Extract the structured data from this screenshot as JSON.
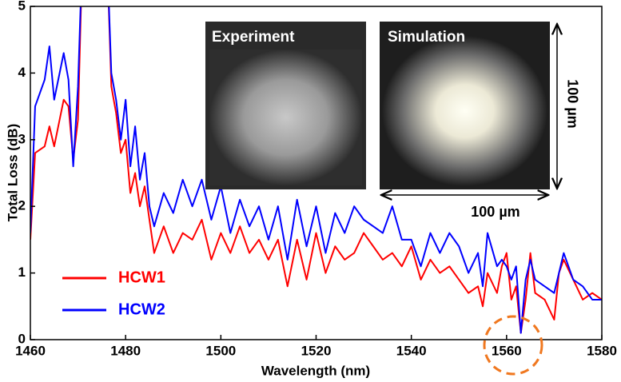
{
  "chart_data": {
    "type": "line",
    "xlabel": "Wavelength (nm)",
    "ylabel": "Total Loss (dB)",
    "x": [
      1460,
      1461,
      1463,
      1464,
      1465,
      1467,
      1468,
      1469,
      1470,
      1471,
      1476,
      1477,
      1478,
      1479,
      1480,
      1481,
      1482,
      1483,
      1484,
      1485,
      1486,
      1488,
      1490,
      1492,
      1494,
      1496,
      1498,
      1500,
      1502,
      1504,
      1506,
      1508,
      1510,
      1512,
      1514,
      1516,
      1518,
      1520,
      1522,
      1524,
      1526,
      1528,
      1530,
      1532,
      1534,
      1536,
      1538,
      1540,
      1542,
      1544,
      1546,
      1548,
      1550,
      1552,
      1554,
      1555,
      1556,
      1558,
      1559,
      1560,
      1561,
      1562,
      1563,
      1564,
      1565,
      1566,
      1568,
      1570,
      1571,
      1572,
      1574,
      1576,
      1578,
      1580
    ],
    "series": [
      {
        "name": "HCW1",
        "color": "#ff0000",
        "values": [
          1.5,
          2.8,
          2.9,
          3.2,
          2.9,
          3.6,
          3.5,
          2.7,
          3.3,
          6,
          6,
          3.8,
          3.4,
          2.8,
          3.0,
          2.2,
          2.5,
          2.0,
          2.3,
          1.8,
          1.3,
          1.7,
          1.3,
          1.6,
          1.5,
          1.8,
          1.2,
          1.6,
          1.3,
          1.7,
          1.3,
          1.5,
          1.2,
          1.5,
          0.8,
          1.5,
          0.9,
          1.6,
          1.0,
          1.4,
          1.2,
          1.3,
          1.6,
          1.4,
          1.2,
          1.3,
          1.1,
          1.4,
          0.9,
          1.2,
          1.0,
          1.1,
          0.9,
          0.7,
          0.8,
          0.5,
          1.0,
          0.7,
          1.1,
          1.3,
          0.6,
          0.8,
          0.1,
          0.6,
          1.3,
          0.7,
          0.6,
          0.3,
          1.0,
          1.2,
          0.9,
          0.6,
          0.7,
          0.6
        ]
      },
      {
        "name": "HCW2",
        "color": "#0000ff",
        "values": [
          1.6,
          3.5,
          3.9,
          4.4,
          3.6,
          4.3,
          3.9,
          2.6,
          3.8,
          6,
          6,
          4.0,
          3.6,
          3.0,
          3.6,
          2.6,
          3.2,
          2.4,
          2.8,
          2.0,
          1.7,
          2.2,
          1.9,
          2.4,
          2.0,
          2.4,
          1.8,
          2.3,
          1.6,
          2.1,
          1.7,
          2.0,
          1.5,
          2.0,
          1.2,
          2.1,
          1.4,
          2.0,
          1.3,
          1.9,
          1.6,
          2.0,
          1.8,
          1.7,
          1.6,
          2.0,
          1.5,
          1.5,
          1.1,
          1.6,
          1.3,
          1.6,
          1.4,
          1.0,
          1.3,
          0.8,
          1.6,
          1.1,
          1.2,
          1.1,
          0.9,
          1.1,
          0.1,
          0.9,
          1.2,
          0.9,
          0.8,
          0.7,
          1.0,
          1.3,
          0.9,
          0.8,
          0.6,
          0.6
        ]
      }
    ],
    "xlim": [
      1460,
      1580
    ],
    "xticks": [
      1460,
      1480,
      1500,
      1520,
      1540,
      1560,
      1580
    ],
    "ylim": [
      0,
      5
    ],
    "yticks": [
      0,
      1,
      2,
      3,
      4,
      5
    ],
    "legend": "lower left",
    "annotations": [
      "Experiment",
      "Simulation",
      "100 µm",
      "100 µm"
    ]
  }
}
